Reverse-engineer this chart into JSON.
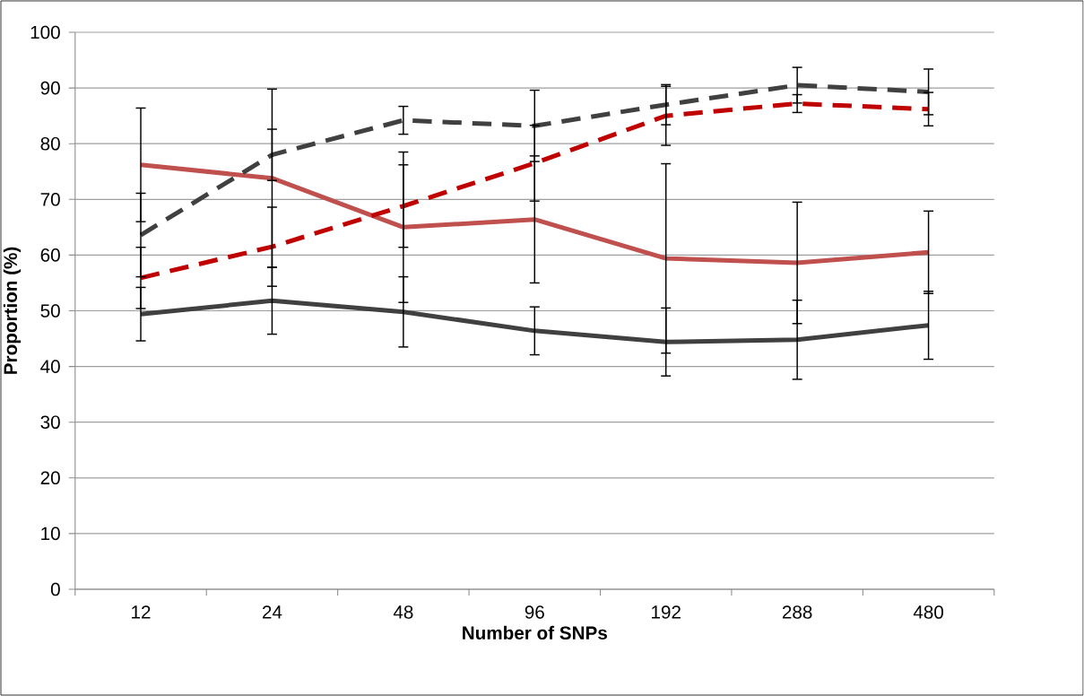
{
  "chart_data": {
    "type": "line",
    "xlabel": "Number of SNPs",
    "ylabel": "Proportion (%)",
    "categories": [
      "12",
      "24",
      "48",
      "96",
      "192",
      "288",
      "480"
    ],
    "series": [
      {
        "color": "#c0504d",
        "line_style": "solid",
        "values": [
          76.2,
          73.8,
          65.0,
          66.4,
          59.4,
          58.6,
          60.5
        ],
        "errors": [
          10.2,
          16.0,
          13.5,
          11.4,
          17.0,
          10.9,
          7.4
        ]
      },
      {
        "color": "#404040",
        "line_style": "solid",
        "values": [
          49.4,
          51.8,
          49.8,
          46.4,
          44.4,
          44.8,
          47.4
        ],
        "errors": [
          4.8,
          6.0,
          6.3,
          4.3,
          6.1,
          7.1,
          6.1
        ]
      },
      {
        "color": "#404040",
        "line_style": "dashed",
        "values": [
          63.6,
          78.0,
          84.2,
          83.2,
          87.0,
          90.5,
          89.3
        ],
        "errors": [
          7.5,
          4.6,
          2.5,
          6.4,
          3.6,
          3.2,
          4.1
        ]
      },
      {
        "color": "#c00000",
        "line_style": "dashed",
        "values": [
          55.9,
          61.5,
          68.8,
          76.5,
          85.0,
          87.2,
          86.2
        ],
        "errors": [
          5.5,
          7.1,
          7.4,
          6.8,
          5.3,
          1.6,
          3.0
        ]
      }
    ],
    "ylim": [
      0,
      100
    ],
    "yticks": [
      0,
      10,
      20,
      30,
      40,
      50,
      60,
      70,
      80,
      90,
      100
    ],
    "grid": "y",
    "marker": "none"
  }
}
